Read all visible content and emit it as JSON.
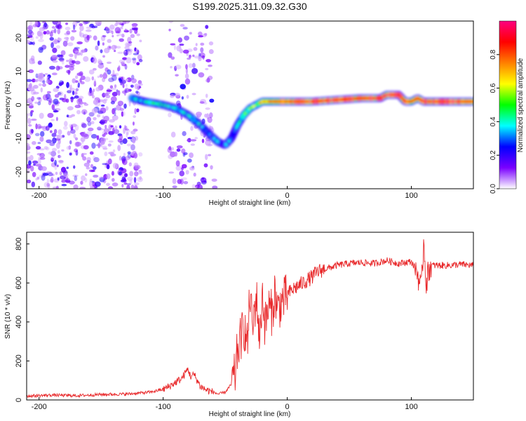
{
  "chart_data": [
    {
      "type": "heatmap",
      "title": "S199.2025.311.09.32.G30",
      "xlabel": "Height of straight line (km)",
      "ylabel": "Frequency (Hz)",
      "xlim": [
        -210,
        150
      ],
      "ylim": [
        -25,
        25
      ],
      "x_ticks": [
        -200,
        -100,
        0,
        100
      ],
      "y_ticks": [
        -20,
        -10,
        0,
        10,
        20
      ],
      "colorbar": {
        "label": "Normalized spectral amplitude",
        "range": [
          0,
          1
        ],
        "ticks": [
          0.0,
          0.2,
          0.4,
          0.6,
          0.8
        ],
        "tick_labels": [
          "0.0",
          "0.2",
          "0.4",
          "0.6",
          "0.8"
        ],
        "colors": [
          "#ffffff",
          "#7a00ff",
          "#0000ff",
          "#00ffff",
          "#00ff00",
          "#ffff00",
          "#ff8000",
          "#ff0000",
          "#ff0080"
        ]
      },
      "ridge": {
        "x": [
          -125,
          -115,
          -100,
          -90,
          -80,
          -70,
          -62,
          -56,
          -50,
          -45,
          -40,
          -35,
          -30,
          -25,
          -20,
          -10,
          0,
          10,
          20,
          40,
          60,
          75,
          80,
          90,
          95,
          100,
          105,
          110,
          120,
          140,
          150
        ],
        "y": [
          2,
          1,
          0,
          -1,
          -3,
          -6,
          -9,
          -11,
          -12,
          -10,
          -6,
          -3,
          -1,
          0,
          1,
          1,
          1,
          1,
          1,
          1.5,
          2,
          2,
          3,
          3,
          1,
          1,
          2,
          1,
          1,
          1,
          1
        ],
        "amplitude": [
          0.35,
          0.4,
          0.4,
          0.4,
          0.4,
          0.35,
          0.3,
          0.3,
          0.3,
          0.35,
          0.4,
          0.45,
          0.5,
          0.55,
          0.7,
          0.8,
          0.85,
          0.9,
          0.95,
          0.95,
          0.9,
          0.9,
          0.95,
          0.95,
          0.8,
          0.85,
          0.85,
          0.9,
          0.95,
          0.95,
          0.9
        ]
      }
    },
    {
      "type": "line",
      "xlabel": "Height of straight line (km)",
      "ylabel": "SNR (10 * v/v)",
      "xlim": [
        -210,
        150
      ],
      "ylim": [
        0,
        860
      ],
      "x_ticks": [
        -200,
        -100,
        0,
        100
      ],
      "y_ticks": [
        0,
        200,
        400,
        600,
        800
      ],
      "series": [
        {
          "name": "SNR",
          "color": "#e8282a",
          "x": [
            -210,
            -190,
            -170,
            -150,
            -130,
            -110,
            -100,
            -95,
            -90,
            -85,
            -82,
            -80,
            -78,
            -75,
            -70,
            -65,
            -60,
            -55,
            -50,
            -45,
            -42,
            -40,
            -38,
            -35,
            -32,
            -30,
            -28,
            -25,
            -22,
            -20,
            -18,
            -15,
            -12,
            -10,
            -8,
            -5,
            -2,
            0,
            5,
            10,
            15,
            20,
            25,
            30,
            40,
            50,
            60,
            70,
            80,
            90,
            100,
            105,
            108,
            110,
            112,
            115,
            120,
            130,
            140,
            150
          ],
          "y": [
            20,
            25,
            22,
            28,
            30,
            40,
            55,
            70,
            90,
            110,
            140,
            160,
            120,
            130,
            70,
            50,
            40,
            30,
            40,
            80,
            130,
            260,
            300,
            380,
            280,
            560,
            360,
            540,
            300,
            560,
            380,
            480,
            440,
            560,
            460,
            500,
            520,
            540,
            570,
            590,
            610,
            630,
            660,
            670,
            690,
            700,
            705,
            700,
            715,
            700,
            710,
            650,
            560,
            820,
            600,
            690,
            690,
            690,
            695,
            690
          ]
        }
      ]
    }
  ]
}
